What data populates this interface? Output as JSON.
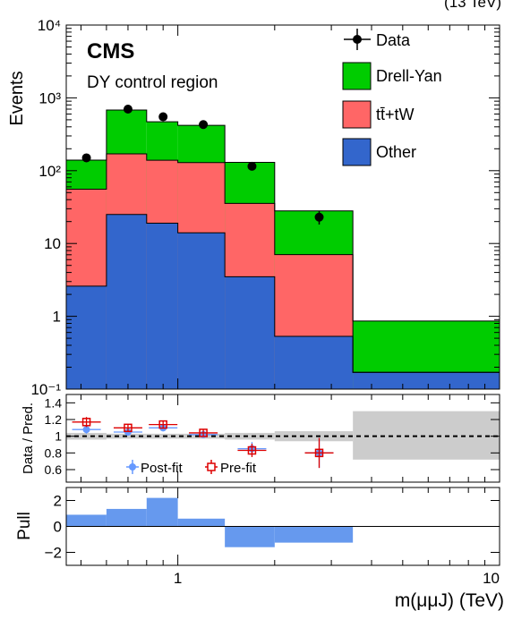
{
  "header": {
    "lumi_text": "(13 TeV)"
  },
  "chart_data": [
    {
      "type": "bar",
      "stacked": true,
      "log_y": true,
      "log_x": true,
      "title": "CMS",
      "subtitle": "DY control region",
      "ylabel": "Events",
      "xlim": [
        0.45,
        10
      ],
      "ylim": [
        0.1,
        10000
      ],
      "y_ticks": [
        "10⁻¹",
        "1",
        "10",
        "10²",
        "10³",
        "10⁴"
      ],
      "bin_edges": [
        0.45,
        0.6,
        0.8,
        1.0,
        1.4,
        2.0,
        3.5,
        10
      ],
      "series": [
        {
          "name": "Other",
          "color": "#3366cc",
          "values": [
            2.6,
            25,
            19,
            14,
            3.5,
            0.53,
            0.17
          ]
        },
        {
          "name": "tt̄+tW",
          "color": "#ff6666",
          "values": [
            53,
            145,
            120,
            115,
            32,
            6.5,
            0.0
          ]
        },
        {
          "name": "Drell-Yan",
          "color": "#00cc00",
          "values": [
            84,
            510,
            331,
            291,
            94.5,
            21,
            0.69
          ]
        }
      ],
      "data_points": {
        "name": "Data",
        "x": [
          0.52,
          0.7,
          0.9,
          1.2,
          1.7,
          2.75
        ],
        "y": [
          150,
          700,
          550,
          430,
          115,
          23
        ]
      },
      "legend": [
        "Data",
        "Drell-Yan",
        "tt̄+tW",
        "Other"
      ],
      "legend_position": "top-right"
    },
    {
      "type": "scatter",
      "log_x": true,
      "ylabel": "Data / Pred.",
      "ylim": [
        0.45,
        1.5
      ],
      "y_ticks": [
        "0.6",
        "0.8",
        "1",
        "1.2",
        "1.4"
      ],
      "reference_line": 1.0,
      "uncertainty_band": {
        "edges": [
          0.45,
          0.6,
          0.8,
          1.0,
          1.4,
          2.0,
          3.5,
          10
        ],
        "lower": [
          0.96,
          0.97,
          0.97,
          0.97,
          0.96,
          0.94,
          0.72
        ],
        "upper": [
          1.04,
          1.03,
          1.03,
          1.03,
          1.04,
          1.06,
          1.3
        ]
      },
      "series": [
        {
          "name": "Post-fit",
          "color": "#6699ff",
          "x": [
            0.52,
            0.7,
            0.9,
            1.2,
            1.7,
            2.75
          ],
          "y": [
            1.08,
            1.05,
            1.1,
            1.02,
            0.85,
            0.8
          ],
          "err": [
            0.05,
            0.04,
            0.04,
            0.04,
            0.08,
            0.18
          ]
        },
        {
          "name": "Pre-fit",
          "color": "#dd0000",
          "x": [
            0.52,
            0.7,
            0.9,
            1.2,
            1.7,
            2.75
          ],
          "y": [
            1.17,
            1.1,
            1.14,
            1.04,
            0.83,
            0.8
          ],
          "err": [
            0.06,
            0.04,
            0.04,
            0.04,
            0.08,
            0.18
          ]
        }
      ],
      "legend": [
        "Post-fit",
        "Pre-fit"
      ]
    },
    {
      "type": "bar",
      "log_x": true,
      "ylabel": "Pull",
      "ylim": [
        -3,
        3
      ],
      "y_ticks": [
        "−2",
        "0",
        "2"
      ],
      "bin_edges": [
        0.45,
        0.6,
        0.8,
        1.0,
        1.4,
        2.0,
        3.5,
        10
      ],
      "values": [
        0.9,
        1.35,
        2.2,
        0.6,
        -1.6,
        -1.25,
        0
      ],
      "color": "#6699ee",
      "xlabel": "m(μμJ) (TeV)",
      "x_ticks": [
        "1",
        "10"
      ]
    }
  ]
}
